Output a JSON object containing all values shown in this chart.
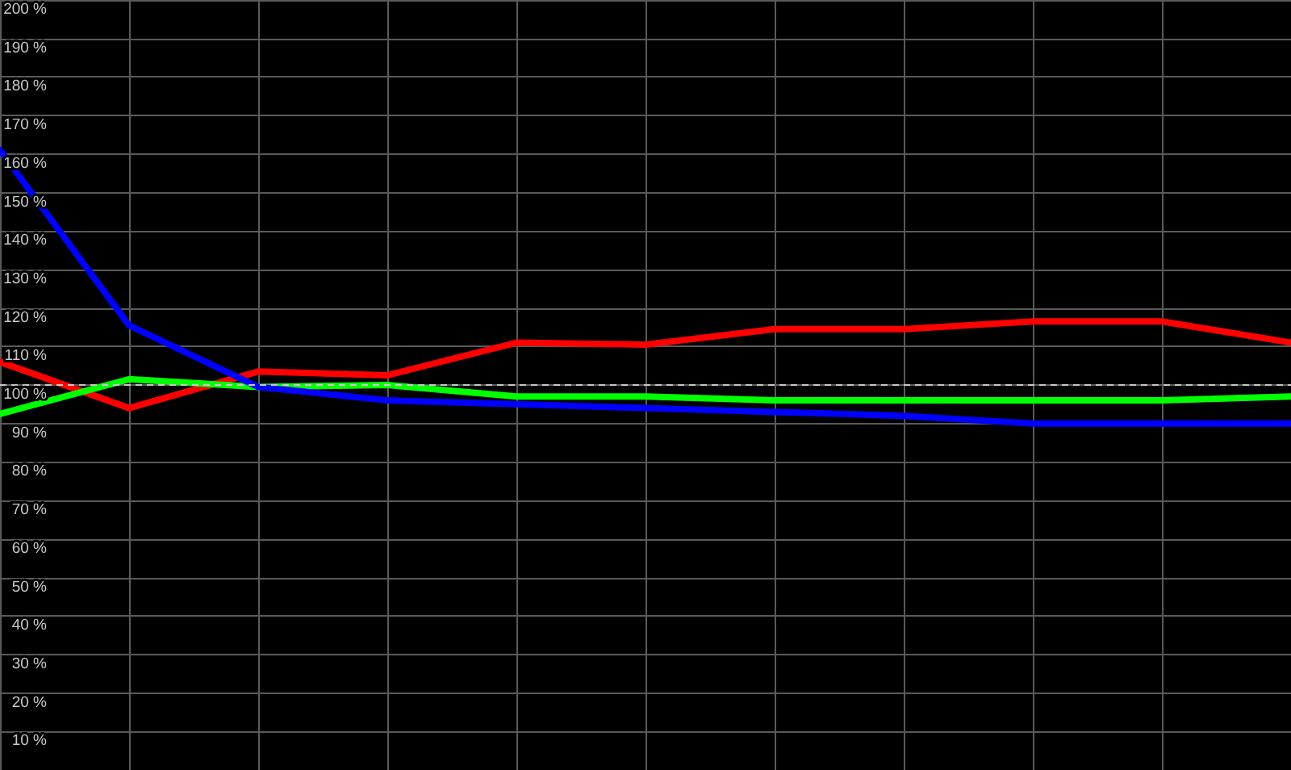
{
  "chart_data": {
    "type": "line",
    "categories": [
      null,
      null,
      null,
      null,
      null,
      null,
      null,
      null,
      null,
      null,
      null
    ],
    "series": [
      {
        "color": "#ff0000",
        "values": [
          106,
          94,
          103.5,
          102.5,
          111,
          110.5,
          114.5,
          114.5,
          116.5,
          116.5,
          111
        ]
      },
      {
        "color": "#00ff00",
        "values": [
          92.5,
          101.5,
          99.5,
          100,
          97,
          97,
          96,
          96,
          96,
          96,
          97
        ]
      },
      {
        "color": "#0000ff",
        "values": [
          161,
          115.5,
          99.5,
          96,
          95,
          94,
          93,
          92,
          90,
          90,
          90
        ]
      }
    ],
    "ylim": [
      0,
      200
    ],
    "yticks": [
      {
        "value": 10,
        "label": "10 %"
      },
      {
        "value": 20,
        "label": "20 %"
      },
      {
        "value": 30,
        "label": "30 %"
      },
      {
        "value": 40,
        "label": "40 %"
      },
      {
        "value": 50,
        "label": "50 %"
      },
      {
        "value": 60,
        "label": "60 %"
      },
      {
        "value": 70,
        "label": "70 %"
      },
      {
        "value": 80,
        "label": "80 %"
      },
      {
        "value": 90,
        "label": "90 %"
      },
      {
        "value": 100,
        "label": "100 %"
      },
      {
        "value": 110,
        "label": "110 %"
      },
      {
        "value": 120,
        "label": "120 %"
      },
      {
        "value": 130,
        "label": "130 %"
      },
      {
        "value": 140,
        "label": "140 %"
      },
      {
        "value": 150,
        "label": "150 %"
      },
      {
        "value": 160,
        "label": "160 %"
      },
      {
        "value": 170,
        "label": "170 %"
      },
      {
        "value": 180,
        "label": "180 %"
      },
      {
        "value": 190,
        "label": "190 %"
      },
      {
        "value": 200,
        "label": "200 %"
      }
    ],
    "ref_lines": [
      {
        "axis": "y",
        "value": 100,
        "color": "#c8c8c8",
        "line_style": "dashed"
      }
    ],
    "grid": true,
    "marker": "none",
    "line_style": "solid"
  }
}
